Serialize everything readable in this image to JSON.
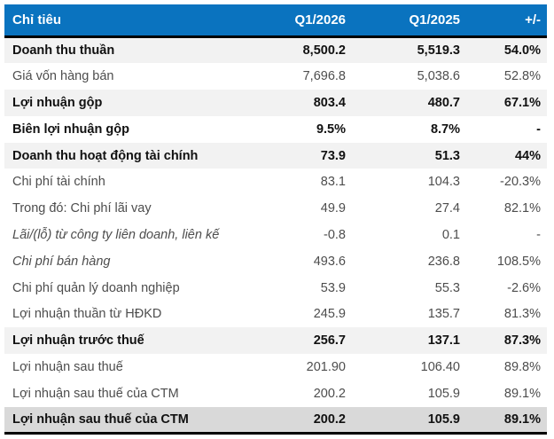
{
  "chart_data": {
    "type": "table",
    "columns": [
      "Chỉ tiêu",
      "Q1/2026",
      "Q1/2025",
      "+/-"
    ],
    "rows": [
      {
        "label": "Doanh thu thuần",
        "q1_2026": "8,500.2",
        "q1_2025": "5,519.3",
        "change": "54.0%",
        "emphasis": "bold",
        "background": "stripe"
      },
      {
        "label": "Giá vốn hàng bán",
        "q1_2026": "7,696.8",
        "q1_2025": "5,038.6",
        "change": "52.8%",
        "emphasis": "regular",
        "background": "white"
      },
      {
        "label": "Lợi nhuận gộp",
        "q1_2026": "803.4",
        "q1_2025": "480.7",
        "change": "67.1%",
        "emphasis": "bold",
        "background": "stripe"
      },
      {
        "label": "Biên lợi nhuận gộp",
        "q1_2026": "9.5%",
        "q1_2025": "8.7%",
        "change": "-",
        "emphasis": "bold",
        "background": "white"
      },
      {
        "label": "Doanh thu hoạt động tài chính",
        "q1_2026": "73.9",
        "q1_2025": "51.3",
        "change": "44%",
        "emphasis": "bold",
        "background": "stripe"
      },
      {
        "label": "Chi phí tài chính",
        "q1_2026": "83.1",
        "q1_2025": "104.3",
        "change": "-20.3%",
        "emphasis": "regular",
        "background": "white"
      },
      {
        "label": "Trong đó: Chi phí lãi vay",
        "q1_2026": "49.9",
        "q1_2025": "27.4",
        "change": "82.1%",
        "emphasis": "regular",
        "background": "white"
      },
      {
        "label": "Lãi/(lỗ) từ công ty liên doanh, liên kế",
        "q1_2026": "-0.8",
        "q1_2025": "0.1",
        "change": "-",
        "emphasis": "italic",
        "background": "white"
      },
      {
        "label": "Chi phí bán hàng",
        "q1_2026": "493.6",
        "q1_2025": "236.8",
        "change": "108.5%",
        "emphasis": "italic",
        "background": "white"
      },
      {
        "label": "Chi phí quản lý doanh nghiệp",
        "q1_2026": "53.9",
        "q1_2025": "55.3",
        "change": "-2.6%",
        "emphasis": "regular",
        "background": "white"
      },
      {
        "label": "Lợi nhuận thuần từ HĐKD",
        "q1_2026": "245.9",
        "q1_2025": "135.7",
        "change": "81.3%",
        "emphasis": "regular",
        "background": "white"
      },
      {
        "label": "Lợi nhuận trước thuế",
        "q1_2026": "256.7",
        "q1_2025": "137.1",
        "change": "87.3%",
        "emphasis": "bold",
        "background": "stripe"
      },
      {
        "label": "Lợi nhuận sau thuế",
        "q1_2026": "201.90",
        "q1_2025": "106.40",
        "change": "89.8%",
        "emphasis": "regular",
        "background": "white"
      },
      {
        "label": "Lợi nhuận sau thuế của CTM",
        "q1_2026": "200.2",
        "q1_2025": "105.9",
        "change": "89.1%",
        "emphasis": "regular",
        "background": "white"
      },
      {
        "label": "Lợi nhuận sau thuế của CTM",
        "q1_2026": "200.2",
        "q1_2025": "105.9",
        "change": "89.1%",
        "emphasis": "bold",
        "background": "total"
      }
    ]
  },
  "colors": {
    "header_background": "#0a73bf",
    "header_text": "#ffffff",
    "stripe_background": "#f2f2f2",
    "total_background": "#d9d9d9",
    "bold_text": "#111111",
    "regular_text": "#4d4d4d",
    "border": "#000000"
  }
}
